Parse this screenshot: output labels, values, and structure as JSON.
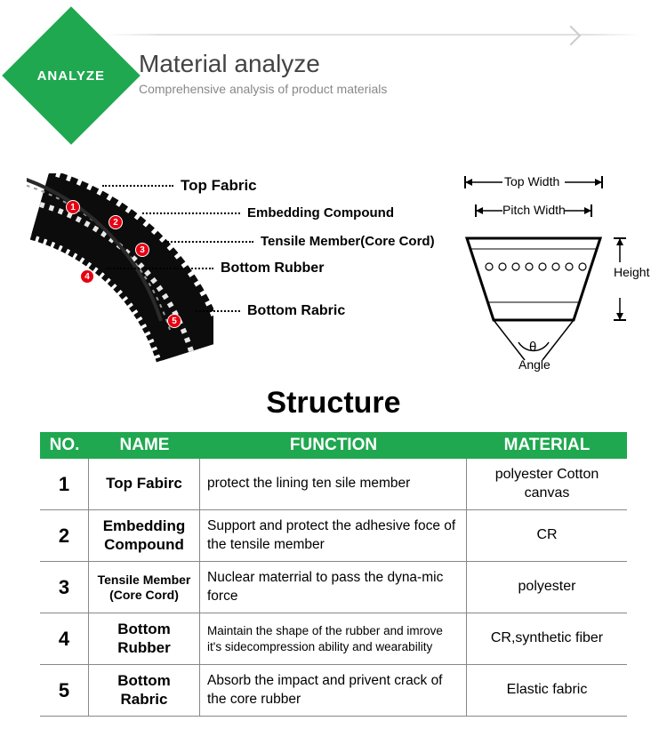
{
  "header": {
    "badge": "ANALYZE",
    "title": "Material analyze",
    "subtitle": "Comprehensive analysis of product materials",
    "badge_color": "#1fa84f"
  },
  "diagram_labels": {
    "l1": "Top Fabric",
    "l2": "Embedding Compound",
    "l3": "Tensile Member(Core Cord)",
    "l4": "Bottom Rubber",
    "l5": "Bottom Rabric"
  },
  "badge_numbers": {
    "n1": "1",
    "n2": "2",
    "n3": "3",
    "n4": "4",
    "n5": "5"
  },
  "cross_section": {
    "top_width": "Top Width",
    "pitch_width": "Pitch Width",
    "height": "Height",
    "angle_sym": "θ",
    "angle": "Angle",
    "belt_fill": "#1a1a1a",
    "outline": "#000000"
  },
  "structure_heading": "Structure",
  "table": {
    "header_color": "#1fa84f",
    "columns": {
      "no": "NO.",
      "name": "NAME",
      "func": "FUNCTION",
      "mat": "MATERIAL"
    },
    "rows": [
      {
        "no": "1",
        "name": "Top Fabirc",
        "func": "protect the lining ten sile member",
        "mat": "polyester Cotton canvas",
        "name_sm": false,
        "func_sm": false
      },
      {
        "no": "2",
        "name": "Embedding Compound",
        "func": "Support and protect the adhesive foce of the tensile member",
        "mat": "CR",
        "name_sm": false,
        "func_sm": false
      },
      {
        "no": "3",
        "name": "Tensile Member (Core Cord)",
        "func": "Nuclear materrial to pass the dyna-mic force",
        "mat": "polyester",
        "name_sm": true,
        "func_sm": false
      },
      {
        "no": "4",
        "name": "Bottom Rubber",
        "func": "Maintain the shape of the rubber and imrove it's sidecompression ability and wearability",
        "mat": "CR,synthetic fiber",
        "name_sm": false,
        "func_sm": true
      },
      {
        "no": "5",
        "name": "Bottom Rabric",
        "func": "Absorb the impact and privent crack of the core rubber",
        "mat": "Elastic fabric",
        "name_sm": false,
        "func_sm": false
      }
    ]
  },
  "belt_colors": {
    "body": "#0c0c0c",
    "star": "#bbbbbb",
    "cord": "#d8d8d8",
    "badge_bg": "#e60012"
  }
}
